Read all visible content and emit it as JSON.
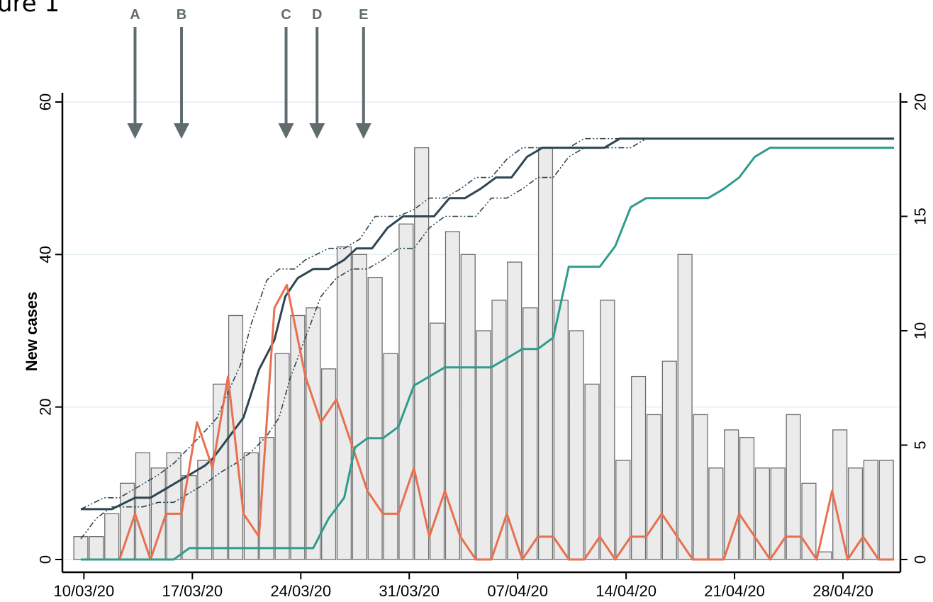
{
  "figure": {
    "title": "ure 1"
  },
  "colors": {
    "bar_fill": "#ebebeb",
    "bar_stroke": "#6e6e6e",
    "navy": "#2c4653",
    "orange": "#e8704f",
    "teal": "#2f9c8c",
    "grid": "#e4eef0",
    "arrow": "#5f6b6d"
  },
  "chart_data": {
    "type": "bar",
    "start_date": "10/03/20",
    "x_tick_labels": [
      "10/03/20",
      "17/03/20",
      "24/03/20",
      "31/03/20",
      "07/04/20",
      "14/04/20",
      "21/04/20",
      "28/04/20"
    ],
    "ylabel": "New cases",
    "ylim": [
      0,
      60
    ],
    "y_ticks": [
      0,
      20,
      40,
      60
    ],
    "y2lim": [
      0,
      20
    ],
    "y2_ticks": [
      0,
      5,
      10,
      15,
      20
    ],
    "grid": true,
    "annotations": [
      {
        "label": "A",
        "day": 3.5
      },
      {
        "label": "B",
        "day": 6.5
      },
      {
        "label": "C",
        "day": 13.25
      },
      {
        "label": "D",
        "day": 15.25
      },
      {
        "label": "E",
        "day": 18.25
      }
    ],
    "bars": [
      3,
      3,
      6,
      10,
      14,
      12,
      14,
      11,
      13,
      23,
      32,
      14,
      16,
      27,
      32,
      33,
      25,
      41,
      40,
      37,
      27,
      44,
      54,
      31,
      43,
      40,
      30,
      34,
      39,
      33,
      54,
      34,
      30,
      23,
      34,
      13,
      24,
      19,
      26,
      40,
      19,
      12,
      17,
      16,
      12,
      12,
      19,
      10,
      1,
      17,
      12,
      13,
      13
    ],
    "series": [
      {
        "axis": "right",
        "style": "solid",
        "color": "navy",
        "points": [
          [
            0,
            2.2
          ],
          [
            2,
            2.2
          ],
          [
            3.5,
            2.7
          ],
          [
            4.5,
            2.7
          ],
          [
            6,
            3.3
          ],
          [
            7,
            3.7
          ],
          [
            8,
            4.1
          ],
          [
            8.5,
            4.4
          ],
          [
            9.5,
            5.3
          ],
          [
            10.5,
            6.2
          ],
          [
            11.5,
            8.3
          ],
          [
            12.5,
            9.6
          ],
          [
            13.2,
            11.5
          ],
          [
            14,
            12.3
          ],
          [
            15,
            12.7
          ],
          [
            16,
            12.7
          ],
          [
            17,
            13.1
          ],
          [
            17.8,
            13.6
          ],
          [
            18.8,
            13.6
          ],
          [
            19.8,
            14.5
          ],
          [
            20.8,
            15
          ],
          [
            21.8,
            15
          ],
          [
            22.8,
            15
          ],
          [
            23.8,
            15.8
          ],
          [
            24.8,
            15.8
          ],
          [
            25.8,
            16.2
          ],
          [
            26.8,
            16.7
          ],
          [
            27.8,
            16.7
          ],
          [
            28.8,
            17.6
          ],
          [
            29.8,
            18
          ],
          [
            30.8,
            18
          ],
          [
            31.8,
            18
          ],
          [
            32.8,
            18
          ],
          [
            33.8,
            18
          ],
          [
            34.8,
            18.4
          ],
          [
            52.5,
            18.4
          ]
        ]
      },
      {
        "axis": "right",
        "style": "dash-dot",
        "color": "navy",
        "points": [
          [
            0,
            2.2
          ],
          [
            1.5,
            2.7
          ],
          [
            2.5,
            2.7
          ],
          [
            3.5,
            3.1
          ],
          [
            5,
            3.7
          ],
          [
            6,
            4.2
          ],
          [
            7,
            4.9
          ],
          [
            8,
            5.6
          ],
          [
            8.8,
            6.2
          ],
          [
            9.5,
            7.3
          ],
          [
            10.3,
            8.5
          ],
          [
            11,
            10.3
          ],
          [
            12,
            12.2
          ],
          [
            12.8,
            12.7
          ],
          [
            13.8,
            12.7
          ],
          [
            14.5,
            13.1
          ],
          [
            16,
            13.6
          ],
          [
            17,
            13.6
          ],
          [
            18,
            14
          ],
          [
            19,
            15
          ],
          [
            20.5,
            15
          ],
          [
            21.5,
            15.3
          ],
          [
            22.5,
            15.8
          ],
          [
            23.5,
            15.8
          ],
          [
            24.5,
            16.2
          ],
          [
            25.5,
            16.7
          ],
          [
            26.5,
            16.7
          ],
          [
            27.5,
            17.5
          ],
          [
            28.5,
            18
          ],
          [
            29.5,
            18
          ],
          [
            30.5,
            18
          ],
          [
            31.5,
            18
          ],
          [
            32.5,
            18.4
          ],
          [
            33.5,
            18.4
          ],
          [
            35,
            18.4
          ],
          [
            52.5,
            18.4
          ]
        ]
      },
      {
        "axis": "right",
        "style": "dash-dot",
        "color": "navy",
        "points": [
          [
            0,
            0.9
          ],
          [
            1,
            1.8
          ],
          [
            2,
            2.3
          ],
          [
            3,
            2.3
          ],
          [
            4,
            2.3
          ],
          [
            5,
            2.5
          ],
          [
            6,
            2.5
          ],
          [
            7,
            2.9
          ],
          [
            8,
            3.3
          ],
          [
            9,
            3.8
          ],
          [
            10,
            4.2
          ],
          [
            11,
            4.7
          ],
          [
            12,
            5.4
          ],
          [
            12.8,
            6.2
          ],
          [
            13.5,
            7.9
          ],
          [
            14.5,
            9.7
          ],
          [
            15.5,
            11.5
          ],
          [
            16.5,
            12.3
          ],
          [
            17.5,
            12.7
          ],
          [
            18.5,
            12.7
          ],
          [
            19.5,
            13.1
          ],
          [
            20.5,
            13.6
          ],
          [
            21.5,
            13.6
          ],
          [
            22.5,
            14.5
          ],
          [
            23.5,
            15
          ],
          [
            24.5,
            15
          ],
          [
            25.5,
            15
          ],
          [
            26.5,
            15.8
          ],
          [
            27.5,
            15.8
          ],
          [
            28.5,
            16.2
          ],
          [
            29.5,
            16.7
          ],
          [
            30.5,
            16.7
          ],
          [
            31.5,
            17.6
          ],
          [
            32.5,
            18
          ],
          [
            33.5,
            18
          ],
          [
            34.5,
            18
          ],
          [
            35.5,
            18
          ],
          [
            36.5,
            18.4
          ],
          [
            52.5,
            18.4
          ]
        ]
      },
      {
        "axis": "left",
        "style": "solid",
        "color": "orange",
        "points": [
          [
            2.5,
            0
          ],
          [
            3.5,
            6
          ],
          [
            4.5,
            0
          ],
          [
            5.5,
            6
          ],
          [
            6.5,
            6
          ],
          [
            7.5,
            18
          ],
          [
            8.5,
            12
          ],
          [
            9.5,
            24
          ],
          [
            10.5,
            6
          ],
          [
            11.5,
            3
          ],
          [
            12.5,
            33
          ],
          [
            13.3,
            36
          ],
          [
            14.5,
            24
          ],
          [
            15.5,
            18
          ],
          [
            16.5,
            21
          ],
          [
            17.5,
            15
          ],
          [
            18.5,
            9
          ],
          [
            19.5,
            6
          ],
          [
            20.5,
            6
          ],
          [
            21.5,
            12
          ],
          [
            22.5,
            3
          ],
          [
            23.5,
            9
          ],
          [
            24.5,
            3
          ],
          [
            25.5,
            0
          ],
          [
            26.5,
            0
          ],
          [
            27.5,
            6
          ],
          [
            28.5,
            0
          ],
          [
            29.5,
            3
          ],
          [
            30.5,
            3
          ],
          [
            31.5,
            0
          ],
          [
            32.5,
            0
          ],
          [
            33.5,
            3
          ],
          [
            34.5,
            0
          ],
          [
            35.5,
            3
          ],
          [
            36.5,
            3
          ],
          [
            37.5,
            6
          ],
          [
            38.5,
            3
          ],
          [
            39.5,
            0
          ],
          [
            40.5,
            0
          ],
          [
            41.5,
            0
          ],
          [
            42.5,
            6
          ],
          [
            43.5,
            3
          ],
          [
            44.5,
            0
          ],
          [
            45.5,
            3
          ],
          [
            46.5,
            3
          ],
          [
            47.5,
            0
          ],
          [
            48.5,
            9
          ],
          [
            49.5,
            0
          ],
          [
            50.5,
            3
          ],
          [
            51.5,
            0
          ],
          [
            52.5,
            0
          ]
        ]
      },
      {
        "axis": "right",
        "style": "solid",
        "color": "teal",
        "points": [
          [
            0,
            0
          ],
          [
            6,
            0
          ],
          [
            7,
            0.5
          ],
          [
            15,
            0.5
          ],
          [
            16,
            1.8
          ],
          [
            17,
            2.7
          ],
          [
            17.7,
            4.9
          ],
          [
            18.5,
            5.3
          ],
          [
            19.5,
            5.3
          ],
          [
            20.5,
            5.8
          ],
          [
            21.5,
            7.6
          ],
          [
            22.5,
            8
          ],
          [
            23.5,
            8.4
          ],
          [
            24.5,
            8.4
          ],
          [
            25.5,
            8.4
          ],
          [
            26.5,
            8.4
          ],
          [
            27.5,
            8.8
          ],
          [
            28.5,
            9.2
          ],
          [
            29.5,
            9.2
          ],
          [
            30.5,
            9.7
          ],
          [
            31.5,
            12.8
          ],
          [
            32.5,
            12.8
          ],
          [
            33.5,
            12.8
          ],
          [
            34.5,
            13.7
          ],
          [
            35.5,
            15.4
          ],
          [
            36.5,
            15.8
          ],
          [
            37.5,
            15.8
          ],
          [
            38.5,
            15.8
          ],
          [
            39.5,
            15.8
          ],
          [
            40.5,
            15.8
          ],
          [
            41.5,
            16.2
          ],
          [
            42.5,
            16.7
          ],
          [
            43.5,
            17.6
          ],
          [
            44.5,
            18
          ],
          [
            52.5,
            18
          ]
        ]
      }
    ]
  }
}
